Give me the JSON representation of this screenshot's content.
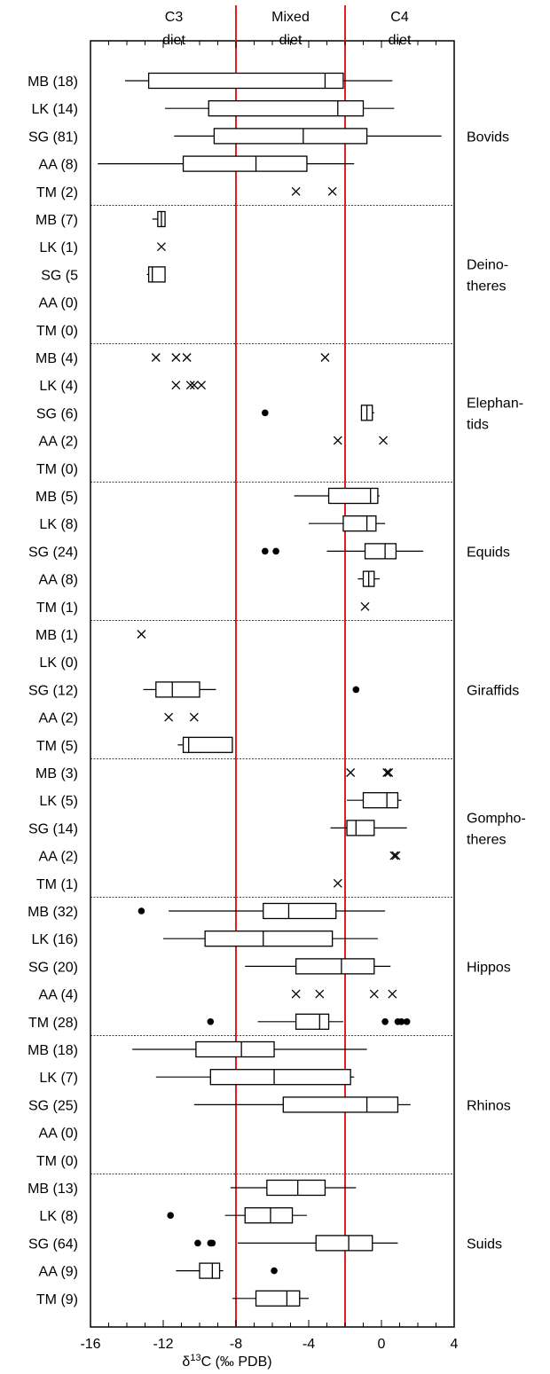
{
  "chart_data": {
    "type": "box",
    "xlabel_prefix": "δ",
    "xlabel_sup": "13",
    "xlabel_rest": "C (‰ PDB)",
    "xlim": [
      -16,
      4
    ],
    "xticks": [
      -16,
      -12,
      -8,
      -4,
      0,
      4
    ],
    "xticklabels": [
      "-16",
      "-12",
      "-8",
      "-4",
      "0",
      "4"
    ],
    "grid": false,
    "diet_regions": [
      {
        "line1": "C3",
        "line2": "diet"
      },
      {
        "line1": "Mixed",
        "line2": "diet"
      },
      {
        "line1": "C4",
        "line2": "diet"
      }
    ],
    "diet_boundaries": [
      -8,
      -2
    ],
    "boundary_color": "#e02020",
    "groups": [
      {
        "name_lines": [
          "Bovids"
        ],
        "rows": [
          {
            "label": "MB (18)",
            "box": [
              -14.1,
              -12.8,
              -3.1,
              -2.1,
              0.6
            ]
          },
          {
            "label": "LK (14)",
            "box": [
              -11.9,
              -9.5,
              -2.4,
              -1.0,
              0.7
            ]
          },
          {
            "label": "SG (81)",
            "box": [
              -11.4,
              -9.2,
              -4.3,
              -0.8,
              3.3
            ]
          },
          {
            "label": "AA (8)",
            "box": [
              -15.6,
              -10.9,
              -6.9,
              -4.1,
              -1.5
            ]
          },
          {
            "label": "TM (2)",
            "points": [
              -4.7,
              -2.7
            ]
          }
        ]
      },
      {
        "name_lines": [
          "Deino-",
          "theres"
        ],
        "rows": [
          {
            "label": "MB (7)",
            "box": [
              -12.6,
              -12.3,
              -12.1,
              -11.9,
              -11.9
            ]
          },
          {
            "label": "LK (1)",
            "points": [
              -12.1
            ]
          },
          {
            "label": "SG (5",
            "box": [
              -12.9,
              -12.8,
              -12.6,
              -11.9,
              -11.9
            ]
          },
          {
            "label": "AA (0)"
          },
          {
            "label": "TM (0)"
          }
        ]
      },
      {
        "name_lines": [
          "Elephan-",
          "tids"
        ],
        "rows": [
          {
            "label": "MB (4)",
            "points": [
              -12.4,
              -11.3,
              -10.7,
              -3.1
            ]
          },
          {
            "label": "LK (4)",
            "points": [
              -11.3,
              -10.5,
              -10.3,
              -9.9
            ]
          },
          {
            "label": "SG (6)",
            "box": [
              -1.1,
              -1.1,
              -0.8,
              -0.5,
              -0.4
            ],
            "outliers": [
              -6.4
            ]
          },
          {
            "label": "AA (2)",
            "points": [
              -2.4,
              0.1
            ]
          },
          {
            "label": "TM (0)"
          }
        ]
      },
      {
        "name_lines": [
          "Equids"
        ],
        "rows": [
          {
            "label": "MB (5)",
            "box": [
              -4.8,
              -2.9,
              -0.6,
              -0.2,
              -0.1
            ]
          },
          {
            "label": "LK (8)",
            "box": [
              -4.0,
              -2.1,
              -0.8,
              -0.3,
              0.2
            ]
          },
          {
            "label": "SG (24)",
            "box": [
              -3.0,
              -0.9,
              0.2,
              0.8,
              2.3
            ],
            "outliers": [
              -6.4,
              -5.8
            ]
          },
          {
            "label": "AA (8)",
            "box": [
              -1.3,
              -1.0,
              -0.7,
              -0.4,
              -0.1
            ]
          },
          {
            "label": "TM (1)",
            "points": [
              -0.9
            ]
          }
        ]
      },
      {
        "name_lines": [
          "Giraffids"
        ],
        "rows": [
          {
            "label": "MB (1)",
            "points": [
              -13.2
            ]
          },
          {
            "label": "LK (0)"
          },
          {
            "label": "SG (12)",
            "box": [
              -13.1,
              -12.4,
              -11.5,
              -10.0,
              -9.1
            ],
            "outliers": [
              -1.4
            ]
          },
          {
            "label": "AA (2)",
            "points": [
              -11.7,
              -10.3
            ]
          },
          {
            "label": "TM (5)",
            "box": [
              -11.2,
              -10.9,
              -10.6,
              -8.2,
              -8.2
            ]
          }
        ]
      },
      {
        "name_lines": [
          "Gompho-",
          "theres"
        ],
        "rows": [
          {
            "label": "MB (3)",
            "points": [
              -1.7,
              0.3,
              0.4
            ]
          },
          {
            "label": "LK (5)",
            "box": [
              -1.9,
              -1.0,
              0.3,
              0.9,
              1.1
            ]
          },
          {
            "label": "SG (14)",
            "box": [
              -2.8,
              -1.9,
              -1.4,
              -0.4,
              1.4
            ]
          },
          {
            "label": "AA (2)",
            "points": [
              0.7,
              0.8
            ]
          },
          {
            "label": "TM (1)",
            "points": [
              -2.4
            ]
          }
        ]
      },
      {
        "name_lines": [
          "Hippos"
        ],
        "rows": [
          {
            "label": "MB (32)",
            "box": [
              -11.7,
              -6.5,
              -5.1,
              -2.5,
              0.2
            ],
            "outliers": [
              -13.2
            ]
          },
          {
            "label": "LK (16)",
            "box": [
              -12.0,
              -9.7,
              -6.5,
              -2.7,
              -0.2
            ]
          },
          {
            "label": "SG (20)",
            "box": [
              -7.5,
              -4.7,
              -2.2,
              -0.4,
              0.5
            ]
          },
          {
            "label": "AA (4)",
            "points": [
              -4.7,
              -3.4,
              -0.4,
              0.6
            ]
          },
          {
            "label": "TM (28)",
            "box": [
              -6.8,
              -4.7,
              -3.4,
              -2.9,
              -2.1
            ],
            "outliers": [
              -9.4,
              0.2,
              0.9,
              1.1,
              1.4
            ]
          }
        ]
      },
      {
        "name_lines": [
          "Rhinos"
        ],
        "rows": [
          {
            "label": "MB (18)",
            "box": [
              -13.7,
              -10.2,
              -7.7,
              -5.9,
              -0.8
            ]
          },
          {
            "label": "LK (7)",
            "box": [
              -12.4,
              -9.4,
              -5.9,
              -1.7,
              -1.5
            ]
          },
          {
            "label": "SG (25)",
            "box": [
              -10.3,
              -5.4,
              -0.8,
              0.9,
              1.6
            ]
          },
          {
            "label": "AA (0)"
          },
          {
            "label": "TM (0)"
          }
        ]
      },
      {
        "name_lines": [
          "Suids"
        ],
        "rows": [
          {
            "label": "MB (13)",
            "box": [
              -8.3,
              -6.3,
              -4.6,
              -3.1,
              -1.4
            ]
          },
          {
            "label": "LK (8)",
            "box": [
              -8.6,
              -7.5,
              -6.1,
              -4.9,
              -4.1
            ],
            "outliers": [
              -11.6
            ]
          },
          {
            "label": "SG (64)",
            "box": [
              -7.9,
              -3.6,
              -1.8,
              -0.5,
              0.9
            ],
            "outliers": [
              -10.1,
              -9.4,
              -9.3
            ]
          },
          {
            "label": "AA (9)",
            "box": [
              -11.3,
              -10.0,
              -9.3,
              -8.9,
              -8.7
            ],
            "outliers": [
              -5.9
            ]
          },
          {
            "label": "TM (9)",
            "box": [
              -8.2,
              -6.9,
              -5.2,
              -4.5,
              -4.0
            ]
          }
        ]
      }
    ]
  }
}
